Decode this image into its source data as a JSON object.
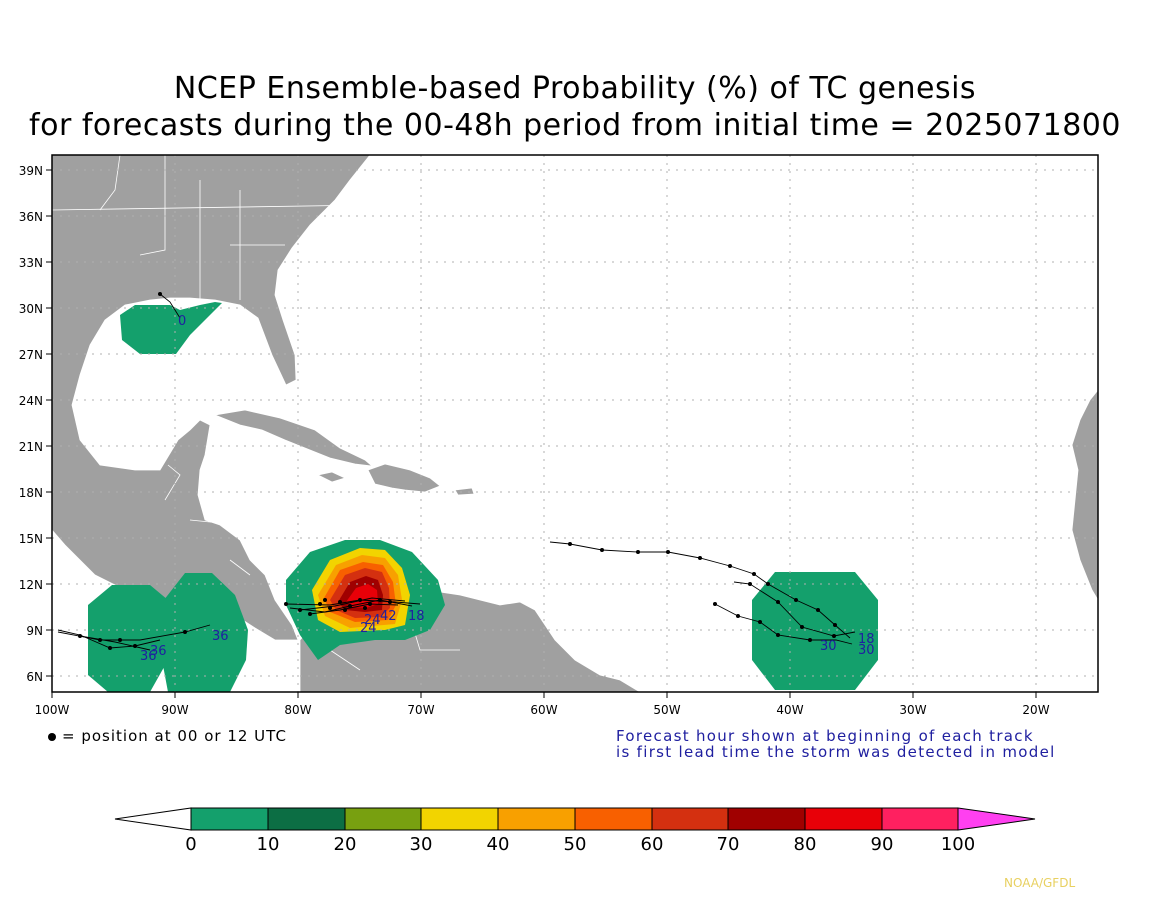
{
  "title_line1": "NCEP Ensemble-based Probability (%) of TC genesis",
  "title_line2": "for forecasts during the 00-48h period from initial time = 2025071800",
  "lat_labels": [
    "39N",
    "36N",
    "33N",
    "30N",
    "27N",
    "24N",
    "21N",
    "18N",
    "15N",
    "12N",
    "9N",
    "6N"
  ],
  "lon_labels": [
    "100W",
    "90W",
    "80W",
    "70W",
    "60W",
    "50W",
    "40W",
    "30W",
    "20W"
  ],
  "position_legend": "= position at 00 or 12 UTC",
  "forecast_note_line1": "Forecast hour shown at beginning of each track",
  "forecast_note_line2": "is first lead time the storm was detected in model",
  "credit": "NOAA/GFDL",
  "colorbar": {
    "ticks": [
      "0",
      "10",
      "20",
      "30",
      "40",
      "50",
      "60",
      "70",
      "80",
      "90",
      "100"
    ],
    "colors": [
      "#ffffff",
      "#14a06c",
      "#0c6e44",
      "#78a010",
      "#f2d400",
      "#f8a000",
      "#f86000",
      "#d43010",
      "#a00000",
      "#e80008",
      "#ff2060",
      "#ff40f0"
    ]
  },
  "track_hour_labels": {
    "gulf": "0",
    "east_pacific": [
      "36",
      "36",
      "36"
    ],
    "caribbean": [
      "24",
      "24",
      "42",
      "18"
    ],
    "atlantic": [
      "18",
      "30",
      "30"
    ]
  },
  "colors": {
    "land": "#a0a0a0",
    "ocean": "#ffffff",
    "track_label": "#2020a0"
  }
}
